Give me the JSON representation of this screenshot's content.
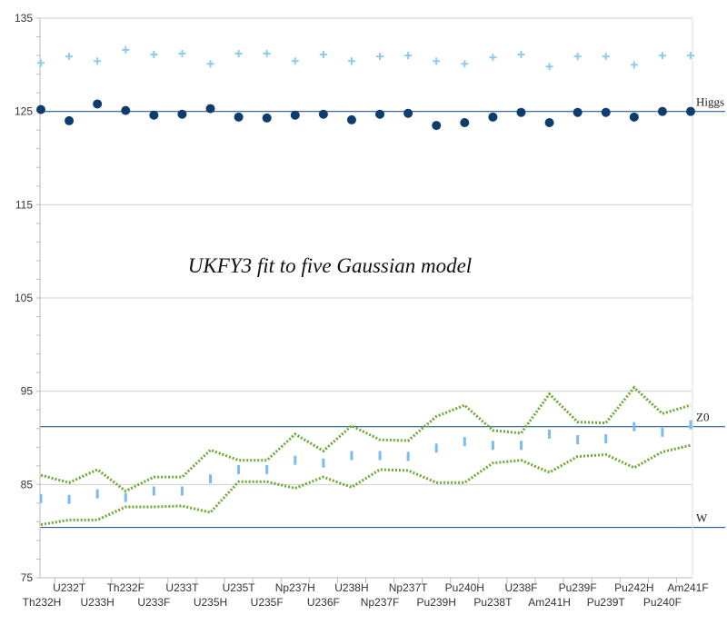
{
  "chart_data": {
    "type": "scatter",
    "title": "UKFY3 fit to five Gaussian model",
    "xlabel": "",
    "ylabel": "",
    "ylim": [
      75,
      135
    ],
    "yticks": [
      75,
      85,
      95,
      105,
      115,
      125,
      135
    ],
    "grid": "horizontal",
    "categories": [
      "Th232H",
      "U232T",
      "U233H",
      "Th232F",
      "U233F",
      "U233T",
      "U235H",
      "U235T",
      "U235F",
      "Np237H",
      "U236F",
      "U238H",
      "Np237F",
      "Np237T",
      "Pu239H",
      "Pu240H",
      "Pu238T",
      "U238F",
      "Am241H",
      "Pu239F",
      "Pu239T",
      "Pu242H",
      "Pu240F",
      "Am241F"
    ],
    "reference_lines": [
      {
        "label": "Higgs",
        "value": 125
      },
      {
        "label": "Z0",
        "value": 91.2
      },
      {
        "label": "W",
        "value": 80.4
      }
    ],
    "series": [
      {
        "color": "#8ccbf2",
        "marker": "plus",
        "values": [
          130.2,
          130.9,
          130.4,
          131.6,
          131.1,
          131.2,
          130.1,
          131.2,
          131.2,
          130.4,
          131.1,
          130.4,
          130.9,
          131.0,
          130.4,
          130.1,
          130.8,
          131.1,
          129.8,
          130.9,
          130.9,
          130.0,
          131.0,
          131.0
        ]
      },
      {
        "color": "#0d3d6e",
        "marker": "circle",
        "values": [
          125.2,
          124.0,
          125.8,
          125.1,
          124.6,
          124.7,
          125.3,
          124.4,
          124.3,
          124.6,
          124.7,
          124.1,
          124.7,
          124.8,
          123.5,
          123.8,
          124.4,
          124.9,
          123.8,
          124.9,
          124.9,
          124.4,
          125.0,
          125.0
        ]
      },
      {
        "color": "#7cbcec",
        "marker": "dash",
        "values": [
          83.5,
          83.4,
          84.0,
          83.6,
          84.3,
          84.3,
          85.6,
          86.6,
          86.6,
          87.6,
          87.3,
          88.1,
          88.1,
          88.0,
          88.9,
          89.6,
          89.2,
          89.2,
          90.4,
          89.8,
          89.9,
          91.2,
          90.6,
          91.4
        ]
      },
      {
        "color": "#6aaa30",
        "marker": "dotted-line",
        "values": [
          86.0,
          85.2,
          86.6,
          84.3,
          85.8,
          85.8,
          88.7,
          87.6,
          87.6,
          90.4,
          88.6,
          91.3,
          89.8,
          89.7,
          92.3,
          93.5,
          90.8,
          90.5,
          94.7,
          91.7,
          91.6,
          95.4,
          92.6,
          93.5
        ]
      },
      {
        "color": "#6aaa30",
        "marker": "dotted-line",
        "values": [
          80.7,
          81.2,
          81.2,
          82.6,
          82.6,
          82.7,
          82.0,
          85.3,
          85.3,
          84.6,
          85.8,
          84.7,
          86.6,
          86.5,
          85.2,
          85.2,
          87.3,
          87.6,
          86.3,
          88.0,
          88.2,
          86.8,
          88.5,
          89.2
        ]
      }
    ]
  }
}
